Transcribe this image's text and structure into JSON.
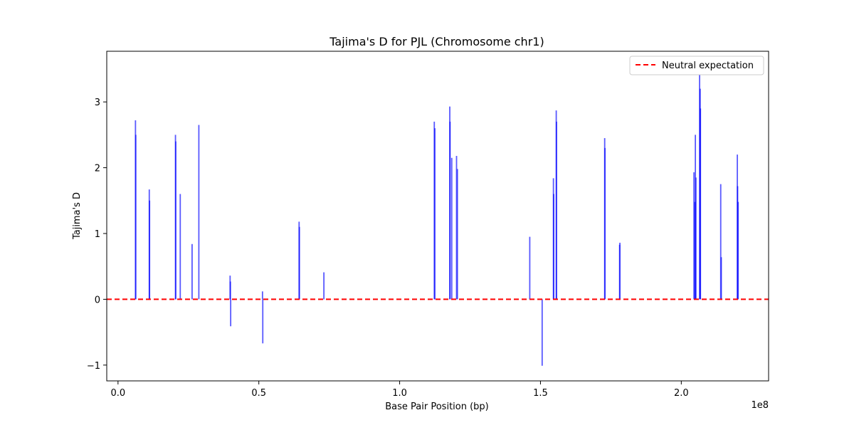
{
  "chart_data": {
    "type": "bar",
    "title": "Tajima's D for PJL (Chromosome chr1)",
    "xlabel": "Base Pair Position (bp)",
    "ylabel": "Tajima's D",
    "x_offset_label": "1e8",
    "xlim": [
      -0.04,
      2.31
    ],
    "ylim": [
      -1.24,
      3.77
    ],
    "x_ticks": [
      {
        "value": 0.0,
        "label": "0.0"
      },
      {
        "value": 0.5,
        "label": "0.5"
      },
      {
        "value": 1.0,
        "label": "1.0"
      },
      {
        "value": 1.5,
        "label": "1.5"
      },
      {
        "value": 2.0,
        "label": "2.0"
      }
    ],
    "y_ticks": [
      {
        "value": -1,
        "label": "−1"
      },
      {
        "value": 0,
        "label": "0"
      },
      {
        "value": 1,
        "label": "1"
      },
      {
        "value": 2,
        "label": "2"
      },
      {
        "value": 3,
        "label": "3"
      }
    ],
    "grid": false,
    "legend": {
      "position": "top-right",
      "entries": [
        {
          "label": "Neutral expectation",
          "color": "#ff0000",
          "style": "dashed"
        }
      ]
    },
    "reference_line": {
      "y": 0,
      "color": "#ff0000",
      "style": "dashed"
    },
    "bar_color": "#0000ff",
    "series": [
      {
        "x": [
          0.062,
          0.063,
          0.111,
          0.112,
          0.204,
          0.205,
          0.221,
          0.263,
          0.287,
          0.398,
          0.399,
          0.4,
          0.513,
          0.514,
          0.643,
          0.644,
          0.731,
          1.123,
          1.125,
          1.178,
          1.179,
          1.185,
          1.202,
          1.205,
          1.462,
          1.506,
          1.546,
          1.547,
          1.556,
          1.557,
          1.728,
          1.729,
          1.781,
          1.782,
          2.045,
          2.048,
          2.05,
          2.052,
          2.065,
          2.067,
          2.068,
          2.14,
          2.142,
          2.199,
          2.2,
          2.202
        ],
        "values": [
          2.72,
          2.5,
          1.67,
          1.5,
          2.5,
          2.4,
          1.6,
          0.84,
          2.65,
          0.36,
          0.27,
          -0.41,
          0.12,
          -0.67,
          1.18,
          1.1,
          0.41,
          2.7,
          2.6,
          2.93,
          2.7,
          2.15,
          2.18,
          1.98,
          0.95,
          -1.01,
          1.84,
          1.6,
          2.87,
          2.7,
          2.45,
          2.3,
          0.83,
          0.86,
          1.93,
          1.48,
          2.5,
          1.85,
          3.48,
          3.2,
          2.9,
          1.75,
          0.64,
          2.2,
          1.72,
          1.48
        ]
      }
    ]
  }
}
